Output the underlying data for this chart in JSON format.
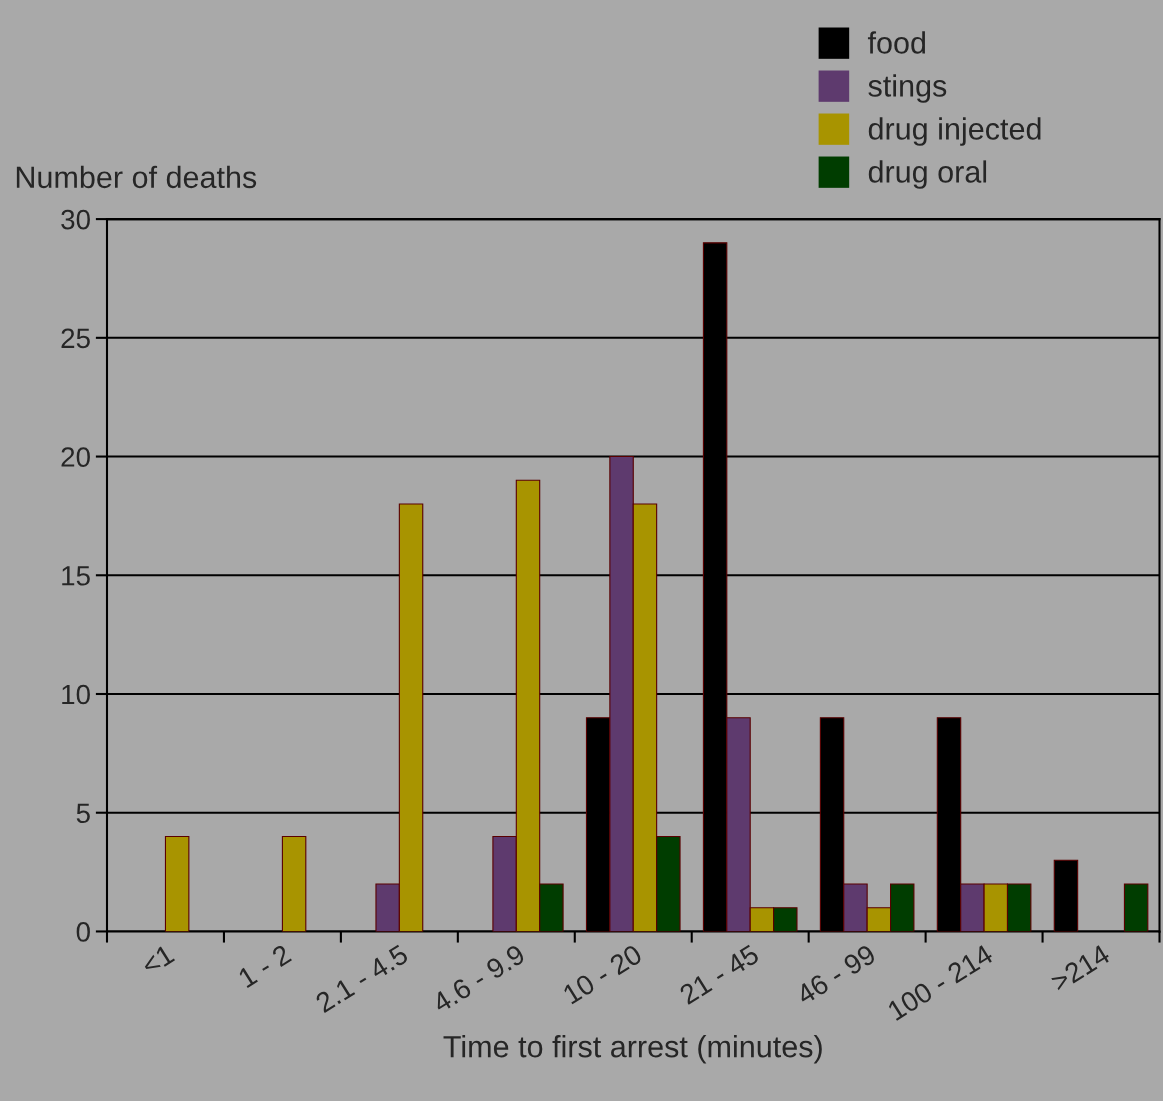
{
  "chart_data": {
    "type": "bar",
    "categories": [
      "<1",
      "1 - 2",
      "2.1 - 4.5",
      "4.6 - 9.9",
      "10 - 20",
      "21 - 45",
      "46 - 99",
      "100 - 214",
      ">214"
    ],
    "series": [
      {
        "name": "food",
        "color": "#000000",
        "values": [
          0,
          0,
          0,
          0,
          9,
          29,
          9,
          9,
          3
        ]
      },
      {
        "name": "stings",
        "color": "#5e3a6e",
        "values": [
          0,
          0,
          2,
          4,
          20,
          9,
          2,
          2,
          0
        ]
      },
      {
        "name": "drug injected",
        "color": "#a89400",
        "values": [
          4,
          4,
          18,
          19,
          18,
          1,
          1,
          2,
          0
        ]
      },
      {
        "name": "drug oral",
        "color": "#003d00",
        "values": [
          0,
          0,
          0,
          2,
          4,
          1,
          2,
          2,
          2
        ]
      }
    ],
    "xlabel": "Time to first arrest (minutes)",
    "ylabel": "Number of deaths",
    "ylim": [
      0,
      30
    ],
    "yticks": [
      0,
      5,
      10,
      15,
      20,
      25,
      30
    ],
    "grid": "y",
    "legend": "top right"
  }
}
